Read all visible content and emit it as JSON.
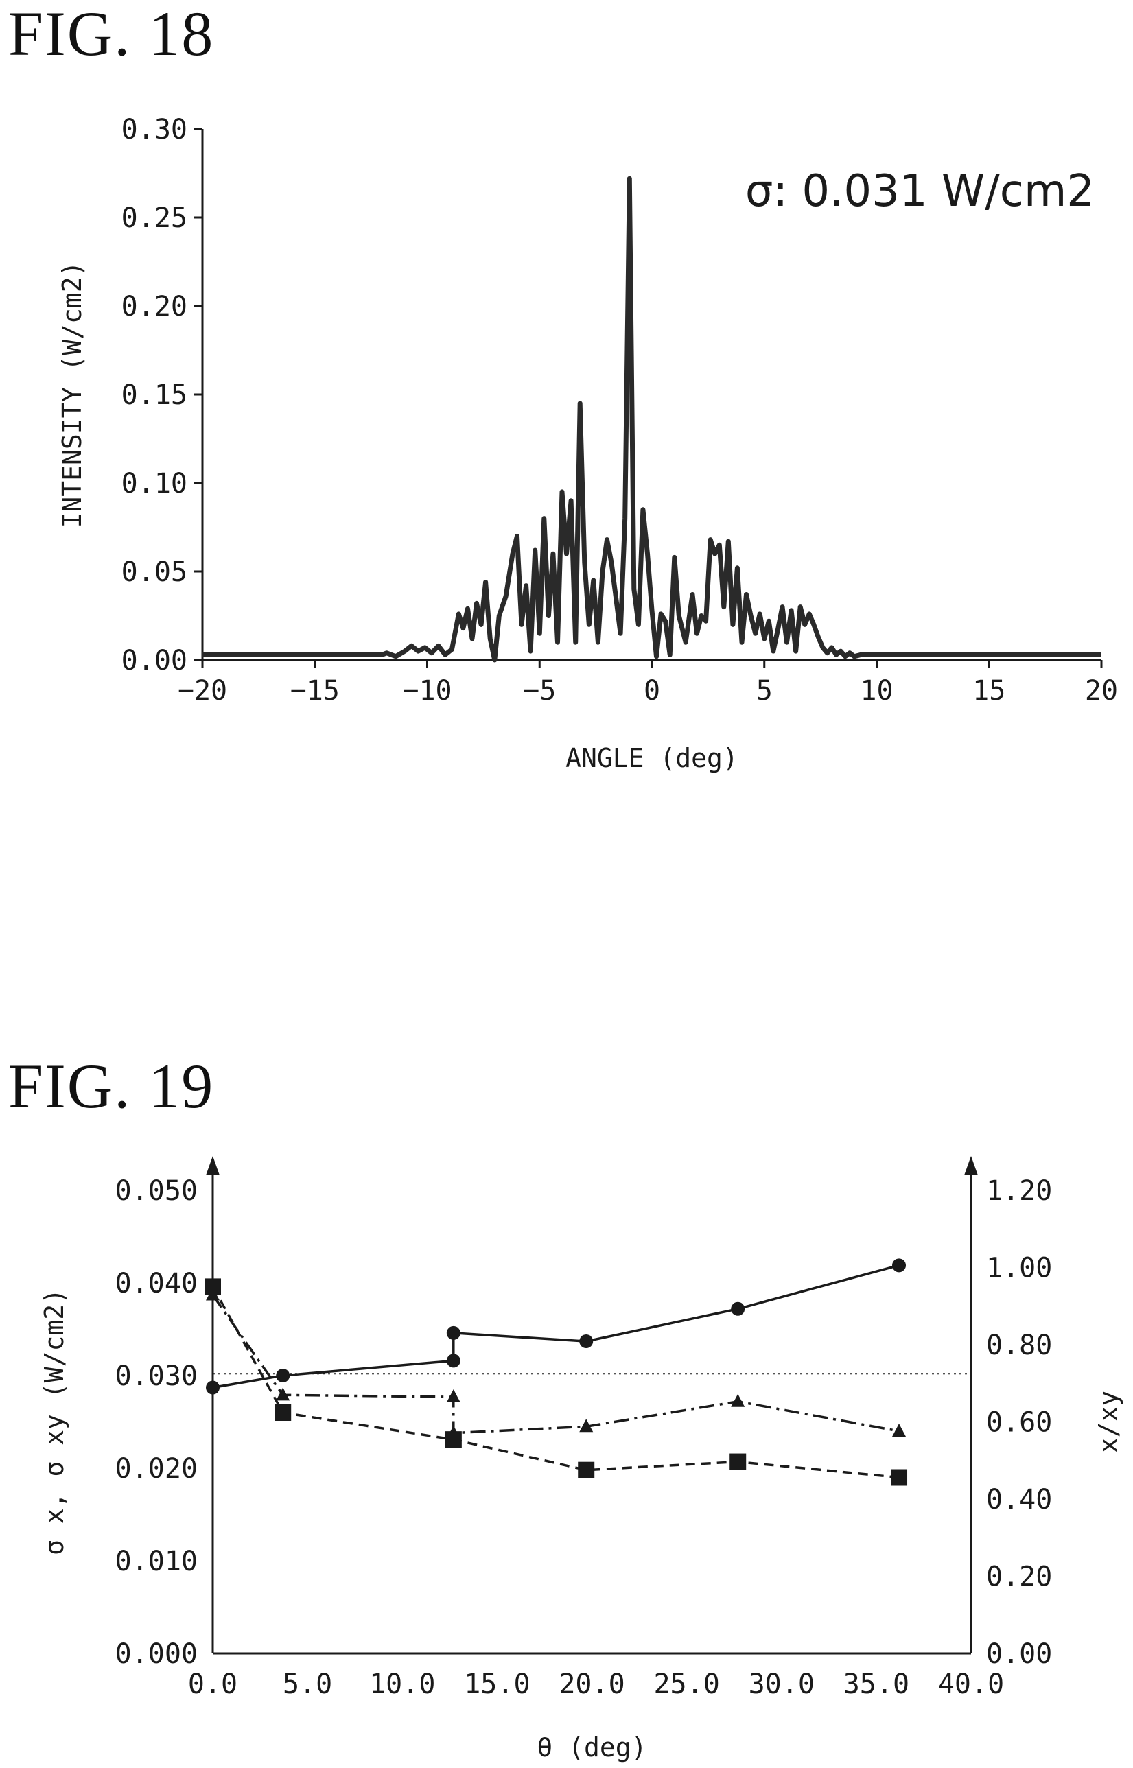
{
  "figures": {
    "fig18_title": "FIG. 18",
    "fig19_title": "FIG. 19"
  },
  "chart_data": [
    {
      "type": "line",
      "title": "",
      "xlabel": "ANGLE (deg)",
      "ylabel": "INTENSITY (W/cm2)",
      "annotation": "σ: 0.031 W/cm2",
      "xlim": [
        -20,
        20
      ],
      "ylim": [
        0,
        0.3
      ],
      "xticks": [
        -20,
        -15,
        -10,
        -5,
        0,
        5,
        10,
        15,
        20
      ],
      "xtick_labels": [
        "−20",
        "−15",
        "−10",
        "−5",
        "0",
        "5",
        "10",
        "15",
        "20"
      ],
      "yticks": [
        0,
        0.05,
        0.1,
        0.15,
        0.2,
        0.25,
        0.3
      ],
      "ytick_labels": [
        "0.00",
        "0.05",
        "0.10",
        "0.15",
        "0.20",
        "0.25",
        "0.30"
      ],
      "series": [
        {
          "x": [
            -20,
            -12,
            -11.8,
            -11.4,
            -11,
            -10.7,
            -10.4,
            -10.1,
            -9.8,
            -9.5,
            -9.2,
            -8.9,
            -8.6,
            -8.4,
            -8.2,
            -8.0,
            -7.8,
            -7.6,
            -7.4,
            -7.2,
            -7.0,
            -6.8,
            -6.5,
            -6.2,
            -6.0,
            -5.8,
            -5.6,
            -5.4,
            -5.2,
            -5.0,
            -4.8,
            -4.6,
            -4.4,
            -4.2,
            -4.0,
            -3.8,
            -3.6,
            -3.4,
            -3.2,
            -3.0,
            -2.8,
            -2.6,
            -2.4,
            -2.2,
            -2.0,
            -1.8,
            -1.6,
            -1.4,
            -1.2,
            -1.0,
            -0.8,
            -0.6,
            -0.4,
            -0.2,
            0.0,
            0.2,
            0.4,
            0.6,
            0.8,
            1.0,
            1.2,
            1.5,
            1.8,
            2.0,
            2.2,
            2.4,
            2.6,
            2.8,
            3.0,
            3.2,
            3.4,
            3.6,
            3.8,
            4.0,
            4.2,
            4.4,
            4.6,
            4.8,
            5.0,
            5.2,
            5.4,
            5.6,
            5.8,
            6.0,
            6.2,
            6.4,
            6.6,
            6.8,
            7.0,
            7.2,
            7.4,
            7.6,
            7.8,
            8.0,
            8.2,
            8.4,
            8.6,
            8.8,
            9.0,
            9.3,
            9.6,
            9.9,
            10.2,
            10.5,
            10.8,
            11.1,
            11.5,
            12,
            20
          ],
          "y": [
            0.003,
            0.003,
            0.004,
            0.002,
            0.005,
            0.008,
            0.005,
            0.007,
            0.004,
            0.008,
            0.003,
            0.006,
            0.026,
            0.018,
            0.029,
            0.012,
            0.032,
            0.02,
            0.044,
            0.012,
            0.0,
            0.025,
            0.036,
            0.06,
            0.07,
            0.02,
            0.042,
            0.005,
            0.062,
            0.015,
            0.08,
            0.025,
            0.06,
            0.01,
            0.095,
            0.06,
            0.09,
            0.01,
            0.145,
            0.055,
            0.02,
            0.045,
            0.01,
            0.05,
            0.068,
            0.055,
            0.035,
            0.015,
            0.08,
            0.272,
            0.04,
            0.02,
            0.085,
            0.06,
            0.028,
            0.002,
            0.026,
            0.022,
            0.003,
            0.058,
            0.025,
            0.01,
            0.037,
            0.015,
            0.025,
            0.022,
            0.068,
            0.06,
            0.065,
            0.03,
            0.067,
            0.02,
            0.052,
            0.01,
            0.037,
            0.025,
            0.015,
            0.026,
            0.012,
            0.022,
            0.005,
            0.017,
            0.03,
            0.01,
            0.028,
            0.005,
            0.03,
            0.02,
            0.026,
            0.02,
            0.013,
            0.007,
            0.004,
            0.007,
            0.003,
            0.005,
            0.002,
            0.004,
            0.002,
            0.003,
            0.003,
            0.003,
            0.003,
            0.003,
            0.003,
            0.003,
            0.003,
            0.003,
            0.003
          ]
        }
      ]
    },
    {
      "type": "line",
      "title": "",
      "xlabel": "θ (deg)",
      "ylabel": "σ x, σ xy (W/cm2)",
      "y2label": "x/xy",
      "xlim": [
        0,
        40
      ],
      "ylim": [
        0,
        0.05
      ],
      "y2lim": [
        0,
        1.2
      ],
      "xticks": [
        0,
        5,
        10,
        15,
        20,
        25,
        30,
        35,
        40
      ],
      "xtick_labels": [
        "0.0",
        "5.0",
        "10.0",
        "15.0",
        "20.0",
        "25.0",
        "30.0",
        "35.0",
        "40.0"
      ],
      "yticks": [
        0,
        0.01,
        0.02,
        0.03,
        0.04,
        0.05
      ],
      "ytick_labels": [
        "0.000",
        "0.010",
        "0.020",
        "0.030",
        "0.040",
        "0.050"
      ],
      "y2ticks": [
        0,
        0.2,
        0.4,
        0.6,
        0.8,
        1.0,
        1.2
      ],
      "y2tick_labels": [
        "0.00",
        "0.20",
        "0.40",
        "0.60",
        "0.80",
        "1.00",
        "1.20"
      ],
      "reference_line_y": 0.0302,
      "series": [
        {
          "marker": "circle",
          "line_style": "solid",
          "x": [
            0.0,
            3.7,
            12.7,
            12.7,
            19.7,
            27.7,
            36.2
          ],
          "y": [
            0.0287,
            0.03,
            0.0316,
            0.0346,
            0.0337,
            0.0372,
            0.0419
          ]
        },
        {
          "marker": "triangle",
          "line_style": "dash-dot",
          "x": [
            0.0,
            3.7,
            12.7,
            12.7,
            19.7,
            27.7,
            36.2
          ],
          "y": [
            0.0387,
            0.0279,
            0.0277,
            0.0238,
            0.0245,
            0.0272,
            0.024
          ]
        },
        {
          "marker": "square",
          "line_style": "dashed",
          "x": [
            0.0,
            3.7,
            12.7,
            19.7,
            27.7,
            36.2
          ],
          "y": [
            0.0396,
            0.026,
            0.0231,
            0.0198,
            0.0207,
            0.019
          ]
        }
      ]
    }
  ]
}
